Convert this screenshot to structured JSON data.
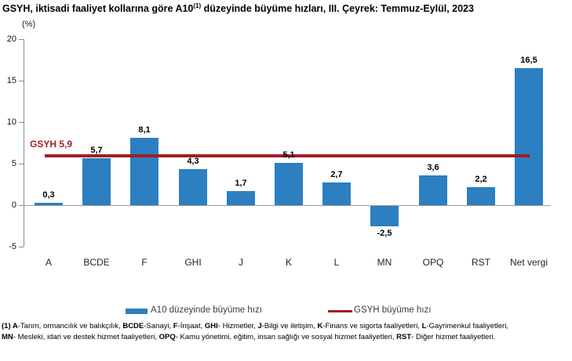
{
  "title": {
    "prefix": "GSYH, iktisadi faaliyet kollarına göre A10",
    "superscript": "(1)",
    "suffix": " düzeyinde büyüme hızları, III. Çeyrek: Temmuz-Eylül, 2023"
  },
  "unit_label": "(%)",
  "chart_data": {
    "type": "bar",
    "title": "GSYH, iktisadi faaliyet kollarına göre A10(1) düzeyinde büyüme hızları, III. Çeyrek: Temmuz-Eylül, 2023",
    "ylabel": "(%)",
    "xlabel": "",
    "categories": [
      "A",
      "BCDE",
      "F",
      "GHI",
      "J",
      "K",
      "L",
      "MN",
      "OPQ",
      "RST",
      "Net vergi"
    ],
    "values": [
      0.3,
      5.7,
      8.1,
      4.3,
      1.7,
      5.1,
      2.7,
      -2.5,
      3.6,
      2.2,
      16.5
    ],
    "value_labels": [
      "0,3",
      "5,7",
      "8,1",
      "4,3",
      "1,7",
      "5,1",
      "2,7",
      "-2,5",
      "3,6",
      "2,2",
      "16,5"
    ],
    "series": [
      {
        "name": "A10 düzeyinde büyüme hızı",
        "type": "bar",
        "color": "#2C7FC0"
      }
    ],
    "reference_line": {
      "name": "GSYH büyüme hızı",
      "value": 5.9,
      "label": "GSYH 5,9",
      "color": "#A01E23",
      "label_color": "#A52126"
    },
    "ylim": [
      -5,
      20
    ],
    "ytick_values": [
      20,
      15,
      10,
      5,
      0,
      -5
    ],
    "ytick_labels": [
      "20",
      "15",
      "10",
      "5",
      "0",
      "-5"
    ],
    "grid": false,
    "legend_position": "bottom"
  },
  "legend": {
    "bar_label": "A10 düzeyinde büyüme hızı",
    "line_label": "GSYH büyüme hızı"
  },
  "footnote": {
    "line1": [
      {
        "t": "(1) A",
        "b": true
      },
      {
        "t": "-Tarım, ormancılık ve balıkçılık, ",
        "b": false
      },
      {
        "t": "BCDE",
        "b": true
      },
      {
        "t": "-Sanayi, ",
        "b": false
      },
      {
        "t": "F",
        "b": true
      },
      {
        "t": "-İnşaat, ",
        "b": false
      },
      {
        "t": "GHI",
        "b": true
      },
      {
        "t": "- Hizmetler, ",
        "b": false
      },
      {
        "t": "J",
        "b": true
      },
      {
        "t": "-Bilgi ve iletişim, ",
        "b": false
      },
      {
        "t": "K",
        "b": true
      },
      {
        "t": "-Finans ve sigorta faaliyetleri, ",
        "b": false
      },
      {
        "t": "L",
        "b": true
      },
      {
        "t": "-Gayrimenkul faaliyetleri,",
        "b": false
      }
    ],
    "line2": [
      {
        "t": "MN",
        "b": true
      },
      {
        "t": "- Mesleki, idari ve destek hizmet faaliyetleri, ",
        "b": false
      },
      {
        "t": "OPQ",
        "b": true
      },
      {
        "t": "- Kamu yönetimi, eğitim, insan sağlığı ve sosyal hizmet faaliyetleri, ",
        "b": false
      },
      {
        "t": "RST",
        "b": true
      },
      {
        "t": "- Diğer hizmet faaliyetleri.",
        "b": false
      }
    ]
  },
  "colors": {
    "bar": "#2C7FC0",
    "reference_line": "#A01E23",
    "reference_label": "#A52126",
    "axis": "#8C8C8C"
  }
}
